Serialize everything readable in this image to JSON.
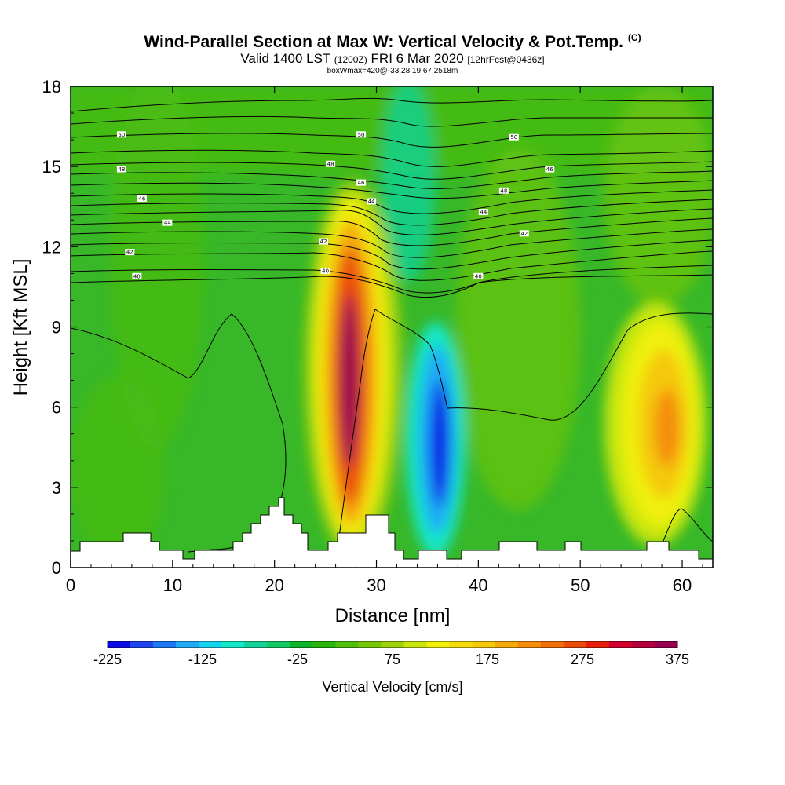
{
  "header": {
    "title": "Wind-Parallel Section at Max W: Vertical Velocity & Pot.Temp.",
    "copyright": "(C)",
    "valid_prefix": "Valid 1400 LST",
    "valid_utc": "(1200Z)",
    "valid_date": "FRI 6 Mar 2020",
    "forecast": "[12hrFcst@0436z]",
    "box_info": "boxWmax=420@-33.28,19.67,2518m"
  },
  "chart_data": {
    "type": "heatmap",
    "title": "Wind-Parallel Section at Max W: Vertical Velocity & Pot.Temp.",
    "xlabel": "Distance [nm]",
    "ylabel": "Height [Kft MSL]",
    "xlim": [
      0,
      63
    ],
    "ylim": [
      0,
      18
    ],
    "x_ticks": [
      0,
      10,
      20,
      30,
      40,
      50,
      60
    ],
    "y_ticks": [
      0,
      3,
      6,
      9,
      12,
      15,
      18
    ],
    "colorbar": {
      "label": "Vertical Velocity [cm/s]",
      "min": -225,
      "max": 375,
      "step": 25,
      "tick_labels": [
        "-225",
        "-125",
        "-25",
        "75",
        "175",
        "275",
        "375"
      ],
      "colors": [
        "#0a0ae6",
        "#1e46f0",
        "#1e78f5",
        "#1eaaf5",
        "#14d2f0",
        "#14e6c8",
        "#14d296",
        "#14c864",
        "#10b428",
        "#2ab40e",
        "#50be0a",
        "#78c80a",
        "#a0d20a",
        "#c8e60a",
        "#f0f00a",
        "#f5dc0a",
        "#f5c80a",
        "#f5aa0a",
        "#f58c0a",
        "#f06e0a",
        "#eb4b0a",
        "#e61e0a",
        "#d2002d",
        "#b4003c",
        "#960050"
      ]
    },
    "w_features": [
      {
        "name": "updraft core",
        "x_nm": 27,
        "height_kft": 7.5,
        "w_cms": 375
      },
      {
        "name": "downdraft core",
        "x_nm": 36,
        "height_kft": 5,
        "w_cms": -225
      },
      {
        "name": "secondary updraft",
        "x_nm": 58,
        "height_kft": 5.5,
        "w_cms": 200
      }
    ],
    "theta_contour_labels": [
      "50",
      "48",
      "46",
      "44",
      "42",
      "40",
      "50",
      "48",
      "46",
      "44",
      "42",
      "40",
      "50",
      "48",
      "46",
      "44",
      "42",
      "40"
    ],
    "theta_label_positions": [
      {
        "text": "50",
        "x_nm": 5,
        "height_kft": 16.2
      },
      {
        "text": "48",
        "x_nm": 5,
        "height_kft": 14.9
      },
      {
        "text": "46",
        "x_nm": 7,
        "height_kft": 13.8
      },
      {
        "text": "44",
        "x_nm": 9.5,
        "height_kft": 12.9
      },
      {
        "text": "42",
        "x_nm": 5.8,
        "height_kft": 11.8
      },
      {
        "text": "40",
        "x_nm": 6.5,
        "height_kft": 10.9
      },
      {
        "text": "50",
        "x_nm": 28.5,
        "height_kft": 16.2
      },
      {
        "text": "48",
        "x_nm": 25.5,
        "height_kft": 15.1
      },
      {
        "text": "46",
        "x_nm": 28.5,
        "height_kft": 14.4
      },
      {
        "text": "44",
        "x_nm": 29.5,
        "height_kft": 13.7
      },
      {
        "text": "42",
        "x_nm": 24.8,
        "height_kft": 12.2
      },
      {
        "text": "40",
        "x_nm": 25,
        "height_kft": 11.1
      },
      {
        "text": "50",
        "x_nm": 43.5,
        "height_kft": 16.1
      },
      {
        "text": "48",
        "x_nm": 42.5,
        "height_kft": 14.1
      },
      {
        "text": "46",
        "x_nm": 47,
        "height_kft": 14.9
      },
      {
        "text": "44",
        "x_nm": 40.5,
        "height_kft": 13.3
      },
      {
        "text": "42",
        "x_nm": 44.5,
        "height_kft": 12.5
      },
      {
        "text": "40",
        "x_nm": 40,
        "height_kft": 10.9
      }
    ]
  }
}
